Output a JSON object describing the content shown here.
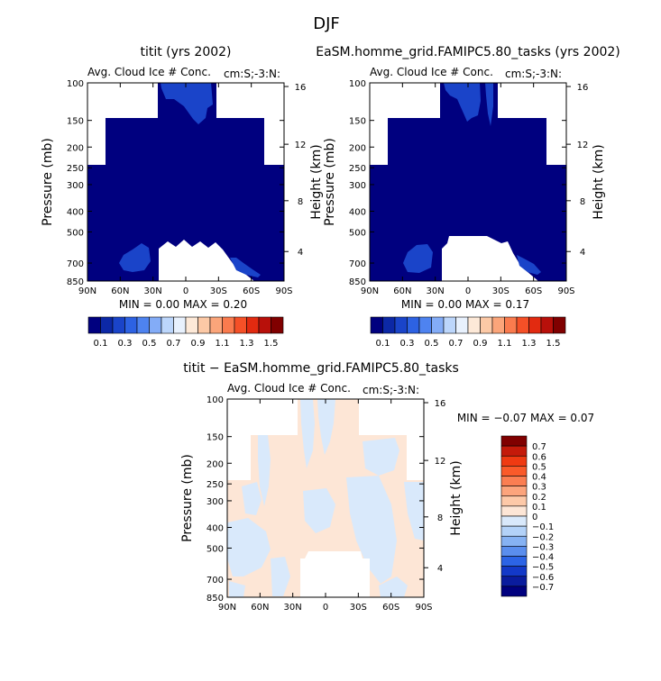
{
  "figure_title": "DJF",
  "panels": [
    {
      "id": "p1",
      "title": "titit (yrs 2002)",
      "subtitle_left": "Avg. Cloud Ice # Conc.",
      "subtitle_right": "cm:S;-3:N:",
      "stats": "MIN =    0.00   MAX =    0.20"
    },
    {
      "id": "p2",
      "title": "EaSM.homme_grid.FAMIPC5.80_tasks (yrs 2002)",
      "subtitle_left": "Avg. Cloud Ice # Conc.",
      "subtitle_right": "cm:S;-3:N:",
      "stats": "MIN =    0.00   MAX =    0.17"
    },
    {
      "id": "p3",
      "title": "titit − EaSM.homme_grid.FAMIPC5.80_tasks",
      "subtitle_left": "Avg. Cloud Ice # Conc.",
      "subtitle_right": "cm:S;-3:N:",
      "stats": "MIN =   −0.07   MAX =    0.07"
    }
  ],
  "axes": {
    "ylabel": "Pressure (mb)",
    "ylabel_right": "Height (km)",
    "pressure_ticks": [
      "100",
      "150",
      "200",
      "250",
      "300",
      "400",
      "500",
      "700",
      "850"
    ],
    "height_ticks": [
      "16",
      "12",
      "8",
      "4"
    ],
    "lat_ticks": [
      "90N",
      "60N",
      "30N",
      "0",
      "30S",
      "60S",
      "90S"
    ]
  },
  "colorbar_top": {
    "labels": [
      "0.1",
      "0.3",
      "0.5",
      "0.7",
      "0.9",
      "1.1",
      "1.3",
      "1.5"
    ],
    "colors": [
      "#00007f",
      "#0c28a6",
      "#1a44c9",
      "#2d62e3",
      "#4e83f0",
      "#83acf7",
      "#bcd6fb",
      "#e8f1fd",
      "#fde9d8",
      "#fcc9a6",
      "#fba57a",
      "#fa7b4e",
      "#f55027",
      "#e22a10",
      "#b8100a",
      "#800000"
    ]
  },
  "colorbar_diff": {
    "labels": [
      "0.7",
      "0.6",
      "0.5",
      "0.4",
      "0.3",
      "0.2",
      "0.1",
      "0",
      "−0.1",
      "−0.2",
      "−0.3",
      "−0.4",
      "−0.5",
      "−0.6",
      "−0.7"
    ],
    "colors": [
      "#800000",
      "#c41a0a",
      "#ef3a12",
      "#fa5a2a",
      "#fb7e52",
      "#fca47c",
      "#fdc9a8",
      "#fde6d6",
      "#d9e9fb",
      "#b3d2f8",
      "#86b2f3",
      "#5a8eee",
      "#2c64e6",
      "#1339c8",
      "#0a1c9e",
      "#00007f"
    ]
  },
  "chart_data": [
    {
      "type": "heatmap",
      "panel": "titit (yrs 2002)",
      "variable": "Avg. Cloud Ice # Conc.",
      "x_axis": "latitude 90N–90S",
      "y_axis": "pressure 100–850 mb (log)",
      "min": 0.0,
      "max": 0.2,
      "ylim": [
        100,
        850
      ]
    },
    {
      "type": "heatmap",
      "panel": "EaSM.homme_grid.FAMIPC5.80_tasks (yrs 2002)",
      "variable": "Avg. Cloud Ice # Conc.",
      "x_axis": "latitude 90N–90S",
      "y_axis": "pressure 100–850 mb (log)",
      "min": 0.0,
      "max": 0.17,
      "ylim": [
        100,
        850
      ]
    },
    {
      "type": "heatmap",
      "panel": "titit − EaSM.homme_grid.FAMIPC5.80_tasks",
      "variable": "Avg. Cloud Ice # Conc.",
      "x_axis": "latitude 90N–90S",
      "y_axis": "pressure 100–850 mb (log)",
      "min": -0.07,
      "max": 0.07,
      "ylim": [
        100,
        850
      ]
    }
  ]
}
